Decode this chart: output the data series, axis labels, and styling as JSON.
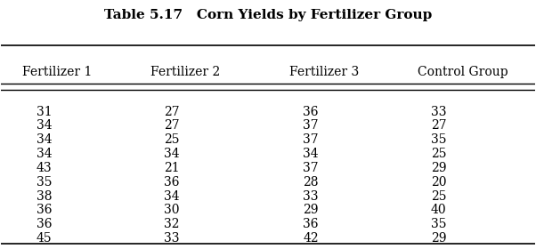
{
  "title": "Table 5.17   Corn Yields by Fertilizer Group",
  "columns": [
    "Fertilizer 1",
    "Fertilizer 2",
    "Fertilizer 3",
    "Control Group"
  ],
  "rows": [
    [
      31,
      27,
      36,
      33
    ],
    [
      34,
      27,
      37,
      27
    ],
    [
      34,
      25,
      37,
      35
    ],
    [
      34,
      34,
      34,
      25
    ],
    [
      43,
      21,
      37,
      29
    ],
    [
      35,
      36,
      28,
      20
    ],
    [
      38,
      34,
      33,
      25
    ],
    [
      36,
      30,
      29,
      40
    ],
    [
      36,
      32,
      36,
      35
    ],
    [
      45,
      33,
      42,
      29
    ]
  ],
  "title_fontsize": 11,
  "header_fontsize": 10,
  "data_fontsize": 10,
  "background_color": "#ffffff",
  "text_color": "#000000"
}
